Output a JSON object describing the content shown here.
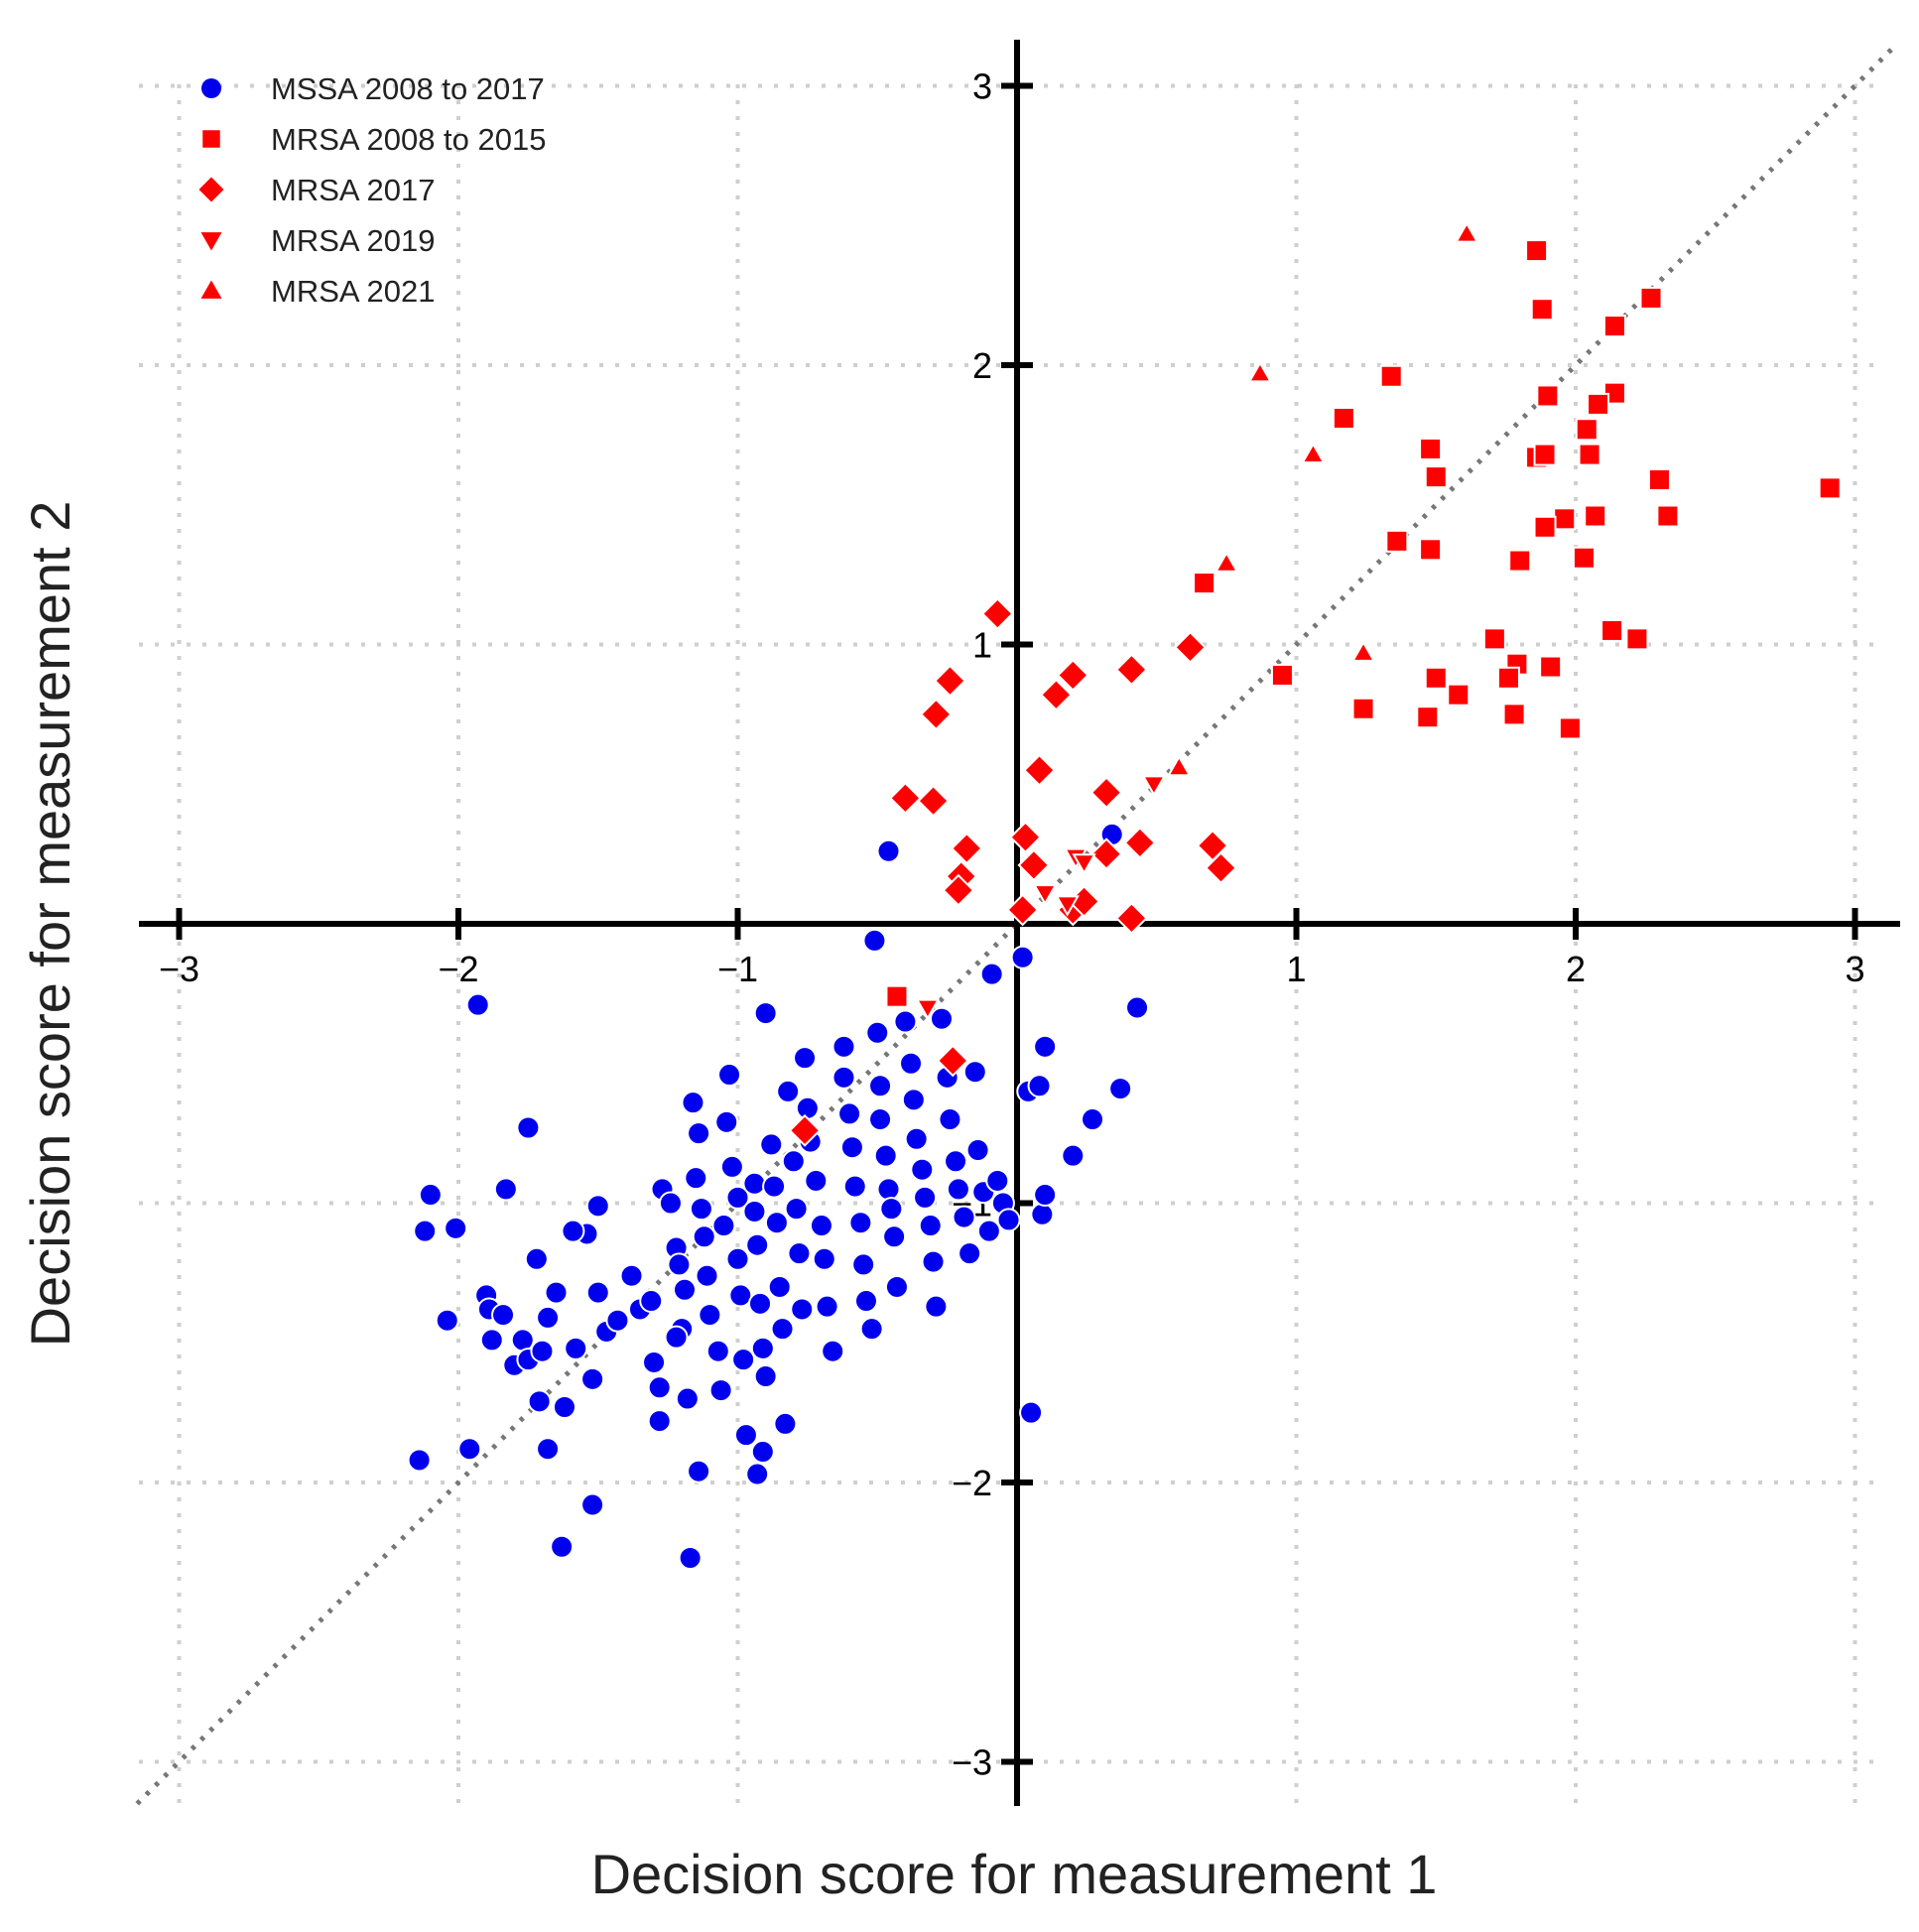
{
  "chart_data": {
    "type": "scatter",
    "title": "",
    "xlabel": "Decision score for measurement 1",
    "ylabel": "Decision score for measurement 2",
    "xlim": [
      -3.15,
      3.15
    ],
    "ylim": [
      -3.15,
      3.15
    ],
    "xticks": [
      -3,
      -2,
      -1,
      1,
      2,
      3
    ],
    "yticks": [
      -3,
      -2,
      -1,
      1,
      2,
      3
    ],
    "tick_labels": {
      "x": [
        "−3",
        "−2",
        "−1",
        "1",
        "2",
        "3"
      ],
      "y": [
        "−3",
        "−2",
        "−1",
        "1",
        "2",
        "3"
      ]
    },
    "grid": true,
    "reference_line": "y = x (dotted)",
    "legend_position": "top-left",
    "series": [
      {
        "name": "MSSA 2008 to 2017",
        "marker": "circle",
        "color": "#0000ee",
        "points": [
          [
            -1.93,
            -0.29
          ],
          [
            -1.75,
            -0.73
          ],
          [
            -1.83,
            -0.95
          ],
          [
            -2.1,
            -0.97
          ],
          [
            -2.12,
            -1.1
          ],
          [
            -2.01,
            -1.09
          ],
          [
            -1.9,
            -1.33
          ],
          [
            -2.04,
            -1.42
          ],
          [
            -1.89,
            -1.38
          ],
          [
            -1.84,
            -1.4
          ],
          [
            -1.88,
            -1.49
          ],
          [
            -1.77,
            -1.49
          ],
          [
            -1.8,
            -1.58
          ],
          [
            -1.75,
            -1.56
          ],
          [
            -1.7,
            -1.53
          ],
          [
            -1.72,
            -1.2
          ],
          [
            -1.68,
            -1.41
          ],
          [
            -1.65,
            -1.32
          ],
          [
            -1.58,
            -1.52
          ],
          [
            -1.62,
            -1.73
          ],
          [
            -1.71,
            -1.71
          ],
          [
            -1.68,
            -1.88
          ],
          [
            -1.54,
            -1.11
          ],
          [
            -1.59,
            -1.1
          ],
          [
            -1.5,
            -1.01
          ],
          [
            -1.5,
            -1.32
          ],
          [
            -1.47,
            -1.46
          ],
          [
            -1.52,
            -1.63
          ],
          [
            -1.43,
            -1.42
          ],
          [
            -1.38,
            -1.26
          ],
          [
            -1.35,
            -1.38
          ],
          [
            -1.31,
            -1.35
          ],
          [
            -1.3,
            -1.57
          ],
          [
            -1.28,
            -1.66
          ],
          [
            -1.28,
            -1.78
          ],
          [
            -1.27,
            -0.95
          ],
          [
            -1.24,
            -1.0
          ],
          [
            -1.22,
            -1.16
          ],
          [
            -1.21,
            -1.22
          ],
          [
            -1.19,
            -1.31
          ],
          [
            -1.2,
            -1.45
          ],
          [
            -1.22,
            -1.48
          ],
          [
            -1.18,
            -1.7
          ],
          [
            -1.15,
            -0.91
          ],
          [
            -1.16,
            -0.64
          ],
          [
            -1.14,
            -0.75
          ],
          [
            -1.13,
            -1.02
          ],
          [
            -1.12,
            -1.12
          ],
          [
            -1.11,
            -1.26
          ],
          [
            -1.1,
            -1.4
          ],
          [
            -1.07,
            -1.53
          ],
          [
            -1.06,
            -1.67
          ],
          [
            -1.05,
            -1.08
          ],
          [
            -1.03,
            -0.54
          ],
          [
            -1.04,
            -0.71
          ],
          [
            -1.02,
            -0.87
          ],
          [
            -1.0,
            -0.98
          ],
          [
            -1.0,
            -1.2
          ],
          [
            -0.99,
            -1.33
          ],
          [
            -0.98,
            -1.56
          ],
          [
            -0.97,
            -1.83
          ],
          [
            -0.94,
            -0.93
          ],
          [
            -0.94,
            -1.03
          ],
          [
            -0.93,
            -1.15
          ],
          [
            -0.92,
            -1.36
          ],
          [
            -0.91,
            -1.52
          ],
          [
            -0.91,
            -1.89
          ],
          [
            -0.9,
            -0.32
          ],
          [
            -0.9,
            -1.62
          ],
          [
            -0.88,
            -0.79
          ],
          [
            -0.87,
            -0.94
          ],
          [
            -0.86,
            -1.07
          ],
          [
            -0.85,
            -1.3
          ],
          [
            -0.84,
            -1.45
          ],
          [
            -0.83,
            -1.79
          ],
          [
            -0.82,
            -0.6
          ],
          [
            -0.8,
            -0.85
          ],
          [
            -0.79,
            -1.02
          ],
          [
            -0.78,
            -1.18
          ],
          [
            -0.77,
            -1.38
          ],
          [
            -0.76,
            -0.48
          ],
          [
            -0.75,
            -0.66
          ],
          [
            -0.74,
            -0.78
          ],
          [
            -0.72,
            -0.92
          ],
          [
            -0.7,
            -1.08
          ],
          [
            -0.69,
            -1.2
          ],
          [
            -0.68,
            -1.37
          ],
          [
            -0.66,
            -1.53
          ],
          [
            -0.62,
            -0.44
          ],
          [
            -0.62,
            -0.55
          ],
          [
            -0.6,
            -0.68
          ],
          [
            -0.59,
            -0.8
          ],
          [
            -0.58,
            -0.94
          ],
          [
            -0.56,
            -1.07
          ],
          [
            -0.55,
            -1.22
          ],
          [
            -0.54,
            -1.35
          ],
          [
            -0.52,
            -1.45
          ],
          [
            -0.5,
            -0.39
          ],
          [
            -0.49,
            -0.58
          ],
          [
            -0.49,
            -0.7
          ],
          [
            -0.47,
            -0.83
          ],
          [
            -0.46,
            -0.95
          ],
          [
            -0.45,
            -1.02
          ],
          [
            -0.44,
            -1.12
          ],
          [
            -0.43,
            -1.3
          ],
          [
            -0.4,
            -0.35
          ],
          [
            -0.38,
            -0.5
          ],
          [
            -0.37,
            -0.63
          ],
          [
            -0.36,
            -0.77
          ],
          [
            -0.34,
            -0.88
          ],
          [
            -0.33,
            -0.98
          ],
          [
            -0.31,
            -1.08
          ],
          [
            -0.3,
            -1.21
          ],
          [
            -0.29,
            -1.37
          ],
          [
            -0.27,
            -0.34
          ],
          [
            -0.25,
            -0.55
          ],
          [
            -0.24,
            -0.7
          ],
          [
            -0.22,
            -0.85
          ],
          [
            -0.21,
            -0.95
          ],
          [
            -0.19,
            -1.05
          ],
          [
            -0.17,
            -1.18
          ],
          [
            -0.15,
            -0.53
          ],
          [
            -0.14,
            -0.81
          ],
          [
            -0.12,
            -0.96
          ],
          [
            -0.1,
            -1.1
          ],
          [
            -0.09,
            -0.18
          ],
          [
            -0.07,
            -0.92
          ],
          [
            -0.05,
            -1.0
          ],
          [
            -0.03,
            -1.06
          ],
          [
            0.02,
            -0.12
          ],
          [
            0.04,
            -0.6
          ],
          [
            0.08,
            -0.58
          ],
          [
            0.1,
            -0.44
          ],
          [
            0.09,
            -1.04
          ],
          [
            0.1,
            -0.97
          ],
          [
            0.05,
            -1.75
          ],
          [
            0.2,
            -0.83
          ],
          [
            0.27,
            -0.7
          ],
          [
            0.37,
            -0.59
          ],
          [
            0.43,
            -0.3
          ],
          [
            -0.46,
            0.26
          ],
          [
            -0.51,
            -0.06
          ],
          [
            0.34,
            0.32
          ],
          [
            -1.63,
            -2.23
          ],
          [
            -1.17,
            -2.27
          ],
          [
            -1.52,
            -2.08
          ],
          [
            -1.14,
            -1.96
          ],
          [
            -2.14,
            -1.92
          ],
          [
            -1.96,
            -1.88
          ],
          [
            -0.93,
            -1.97
          ]
        ]
      },
      {
        "name": "MRSA 2008 to 2015",
        "marker": "square",
        "color": "#ff0000",
        "points": [
          [
            1.86,
            2.41
          ],
          [
            1.88,
            2.2
          ],
          [
            2.27,
            2.24
          ],
          [
            2.14,
            2.14
          ],
          [
            1.34,
            1.96
          ],
          [
            1.17,
            1.81
          ],
          [
            1.9,
            1.89
          ],
          [
            2.14,
            1.9
          ],
          [
            2.08,
            1.86
          ],
          [
            1.48,
            1.7
          ],
          [
            1.5,
            1.6
          ],
          [
            1.86,
            1.67
          ],
          [
            1.89,
            1.68
          ],
          [
            2.04,
            1.77
          ],
          [
            2.05,
            1.68
          ],
          [
            2.3,
            1.59
          ],
          [
            2.91,
            1.56
          ],
          [
            1.96,
            1.45
          ],
          [
            2.07,
            1.46
          ],
          [
            2.33,
            1.46
          ],
          [
            1.36,
            1.37
          ],
          [
            1.48,
            1.34
          ],
          [
            1.89,
            1.42
          ],
          [
            1.8,
            1.3
          ],
          [
            2.03,
            1.31
          ],
          [
            0.67,
            1.22
          ],
          [
            1.71,
            1.02
          ],
          [
            2.13,
            1.05
          ],
          [
            2.22,
            1.02
          ],
          [
            1.79,
            0.93
          ],
          [
            1.91,
            0.92
          ],
          [
            0.95,
            0.89
          ],
          [
            1.5,
            0.88
          ],
          [
            1.58,
            0.82
          ],
          [
            1.76,
            0.88
          ],
          [
            1.24,
            0.77
          ],
          [
            1.47,
            0.74
          ],
          [
            1.78,
            0.75
          ],
          [
            1.98,
            0.7
          ],
          [
            -0.43,
            -0.26
          ]
        ]
      },
      {
        "name": "MRSA 2017",
        "marker": "diamond",
        "color": "#ff0000",
        "points": [
          [
            -0.07,
            1.11
          ],
          [
            -0.24,
            0.87
          ],
          [
            -0.29,
            0.75
          ],
          [
            0.2,
            0.89
          ],
          [
            0.14,
            0.82
          ],
          [
            0.41,
            0.91
          ],
          [
            0.62,
            0.99
          ],
          [
            0.08,
            0.55
          ],
          [
            0.32,
            0.47
          ],
          [
            -0.4,
            0.45
          ],
          [
            -0.3,
            0.44
          ],
          [
            -0.18,
            0.27
          ],
          [
            0.03,
            0.31
          ],
          [
            0.06,
            0.21
          ],
          [
            0.32,
            0.25
          ],
          [
            0.44,
            0.29
          ],
          [
            0.7,
            0.28
          ],
          [
            0.73,
            0.2
          ],
          [
            -0.2,
            0.17
          ],
          [
            -0.21,
            0.12
          ],
          [
            0.02,
            0.05
          ],
          [
            0.2,
            0.05
          ],
          [
            0.24,
            0.08
          ],
          [
            0.41,
            0.02
          ],
          [
            -0.23,
            -0.49
          ],
          [
            -0.76,
            -0.74
          ]
        ]
      },
      {
        "name": "MRSA 2019",
        "marker": "triangle-down",
        "color": "#ff0000",
        "points": [
          [
            0.49,
            0.5
          ],
          [
            0.21,
            0.24
          ],
          [
            0.24,
            0.22
          ],
          [
            0.1,
            0.11
          ],
          [
            0.18,
            0.07
          ],
          [
            -0.32,
            -0.3
          ]
        ]
      },
      {
        "name": "MRSA 2021",
        "marker": "triangle-up",
        "color": "#ff0000",
        "points": [
          [
            1.61,
            2.47
          ],
          [
            0.87,
            1.97
          ],
          [
            1.06,
            1.68
          ],
          [
            0.75,
            1.29
          ],
          [
            1.24,
            0.97
          ],
          [
            0.58,
            0.56
          ]
        ]
      }
    ]
  }
}
